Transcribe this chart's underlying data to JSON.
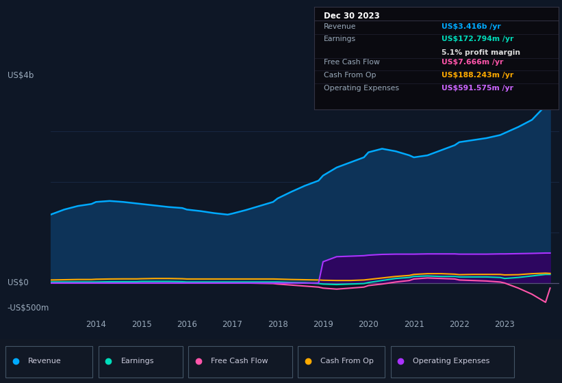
{
  "background_color": "#0e1726",
  "plot_bg_color": "#0e1726",
  "grid_color": "#1e3050",
  "text_color": "#9aaabb",
  "title_color": "#ffffff",
  "years": [
    2013.0,
    2013.3,
    2013.6,
    2013.9,
    2014.0,
    2014.3,
    2014.6,
    2014.9,
    2015.0,
    2015.3,
    2015.6,
    2015.9,
    2016.0,
    2016.3,
    2016.6,
    2016.9,
    2017.0,
    2017.3,
    2017.6,
    2017.9,
    2018.0,
    2018.3,
    2018.6,
    2018.9,
    2019.0,
    2019.3,
    2019.6,
    2019.9,
    2020.0,
    2020.3,
    2020.6,
    2020.9,
    2021.0,
    2021.3,
    2021.6,
    2021.9,
    2022.0,
    2022.3,
    2022.6,
    2022.9,
    2023.0,
    2023.3,
    2023.6,
    2023.9,
    2024.0
  ],
  "revenue": [
    1.35,
    1.45,
    1.52,
    1.56,
    1.6,
    1.62,
    1.6,
    1.57,
    1.56,
    1.53,
    1.5,
    1.48,
    1.45,
    1.42,
    1.38,
    1.35,
    1.37,
    1.44,
    1.52,
    1.6,
    1.67,
    1.8,
    1.92,
    2.02,
    2.12,
    2.28,
    2.38,
    2.48,
    2.58,
    2.65,
    2.6,
    2.52,
    2.48,
    2.52,
    2.62,
    2.72,
    2.78,
    2.82,
    2.86,
    2.92,
    2.96,
    3.08,
    3.22,
    3.5,
    3.9
  ],
  "earnings": [
    0.02,
    0.02,
    0.02,
    0.02,
    0.02,
    0.025,
    0.025,
    0.025,
    0.03,
    0.03,
    0.03,
    0.025,
    0.02,
    0.02,
    0.02,
    0.02,
    0.02,
    0.02,
    0.02,
    0.02,
    0.02,
    0.01,
    0.005,
    -0.01,
    -0.02,
    -0.03,
    -0.02,
    -0.01,
    0.01,
    0.05,
    0.09,
    0.11,
    0.13,
    0.14,
    0.13,
    0.13,
    0.12,
    0.12,
    0.12,
    0.11,
    0.09,
    0.11,
    0.14,
    0.17,
    0.17
  ],
  "free_cash_flow": [
    0.0,
    0.0,
    0.0,
    0.0,
    0.0,
    0.0,
    0.0,
    0.0,
    0.0,
    0.0,
    0.0,
    0.0,
    0.0,
    0.0,
    0.0,
    0.0,
    0.0,
    0.0,
    -0.005,
    -0.01,
    -0.02,
    -0.04,
    -0.06,
    -0.08,
    -0.1,
    -0.12,
    -0.1,
    -0.08,
    -0.05,
    -0.02,
    0.02,
    0.05,
    0.08,
    0.1,
    0.09,
    0.08,
    0.06,
    0.05,
    0.04,
    0.02,
    0.0,
    -0.1,
    -0.22,
    -0.38,
    -0.1
  ],
  "cash_from_op": [
    0.06,
    0.065,
    0.07,
    0.07,
    0.075,
    0.08,
    0.082,
    0.082,
    0.085,
    0.09,
    0.09,
    0.085,
    0.08,
    0.08,
    0.08,
    0.08,
    0.08,
    0.08,
    0.08,
    0.08,
    0.078,
    0.07,
    0.065,
    0.06,
    0.055,
    0.05,
    0.05,
    0.06,
    0.07,
    0.1,
    0.13,
    0.15,
    0.17,
    0.185,
    0.185,
    0.175,
    0.165,
    0.17,
    0.17,
    0.17,
    0.16,
    0.165,
    0.185,
    0.195,
    0.19
  ],
  "operating_expenses": [
    0.0,
    0.0,
    0.0,
    0.0,
    0.0,
    0.0,
    0.0,
    0.0,
    0.0,
    0.0,
    0.0,
    0.0,
    0.0,
    0.0,
    0.0,
    0.0,
    0.0,
    0.0,
    0.0,
    0.0,
    0.0,
    0.0,
    0.0,
    0.0,
    0.42,
    0.52,
    0.53,
    0.54,
    0.55,
    0.565,
    0.57,
    0.57,
    0.57,
    0.575,
    0.575,
    0.575,
    0.57,
    0.57,
    0.57,
    0.575,
    0.575,
    0.58,
    0.585,
    0.592,
    0.592
  ],
  "colors": {
    "revenue": "#00aaff",
    "earnings": "#00ddbb",
    "free_cash_flow": "#ff55aa",
    "cash_from_op": "#ffaa00",
    "operating_expenses": "#aa33ff"
  },
  "tooltip": {
    "date": "Dec 30 2023",
    "revenue_label": "Revenue",
    "revenue_value": "US$3.416b",
    "revenue_color": "#00aaff",
    "earnings_label": "Earnings",
    "earnings_value": "US$172.794m",
    "earnings_color": "#00ddbb",
    "profit_margin": "5.1%",
    "fcf_label": "Free Cash Flow",
    "fcf_value": "US$7.666m",
    "fcf_color": "#ff55aa",
    "cashop_label": "Cash From Op",
    "cashop_value": "US$188.243m",
    "cashop_color": "#ffaa00",
    "opex_label": "Operating Expenses",
    "opex_value": "US$591.575m",
    "opex_color": "#cc66ff"
  },
  "legend": [
    {
      "label": "Revenue",
      "color": "#00aaff"
    },
    {
      "label": "Earnings",
      "color": "#00ddbb"
    },
    {
      "label": "Free Cash Flow",
      "color": "#ff55aa"
    },
    {
      "label": "Cash From Op",
      "color": "#ffaa00"
    },
    {
      "label": "Operating Expenses",
      "color": "#aa33ff"
    }
  ],
  "xlim": [
    2013.0,
    2024.2
  ],
  "ylim": [
    -0.65,
    4.3
  ],
  "xticks": [
    2014,
    2015,
    2016,
    2017,
    2018,
    2019,
    2020,
    2021,
    2022,
    2023
  ]
}
